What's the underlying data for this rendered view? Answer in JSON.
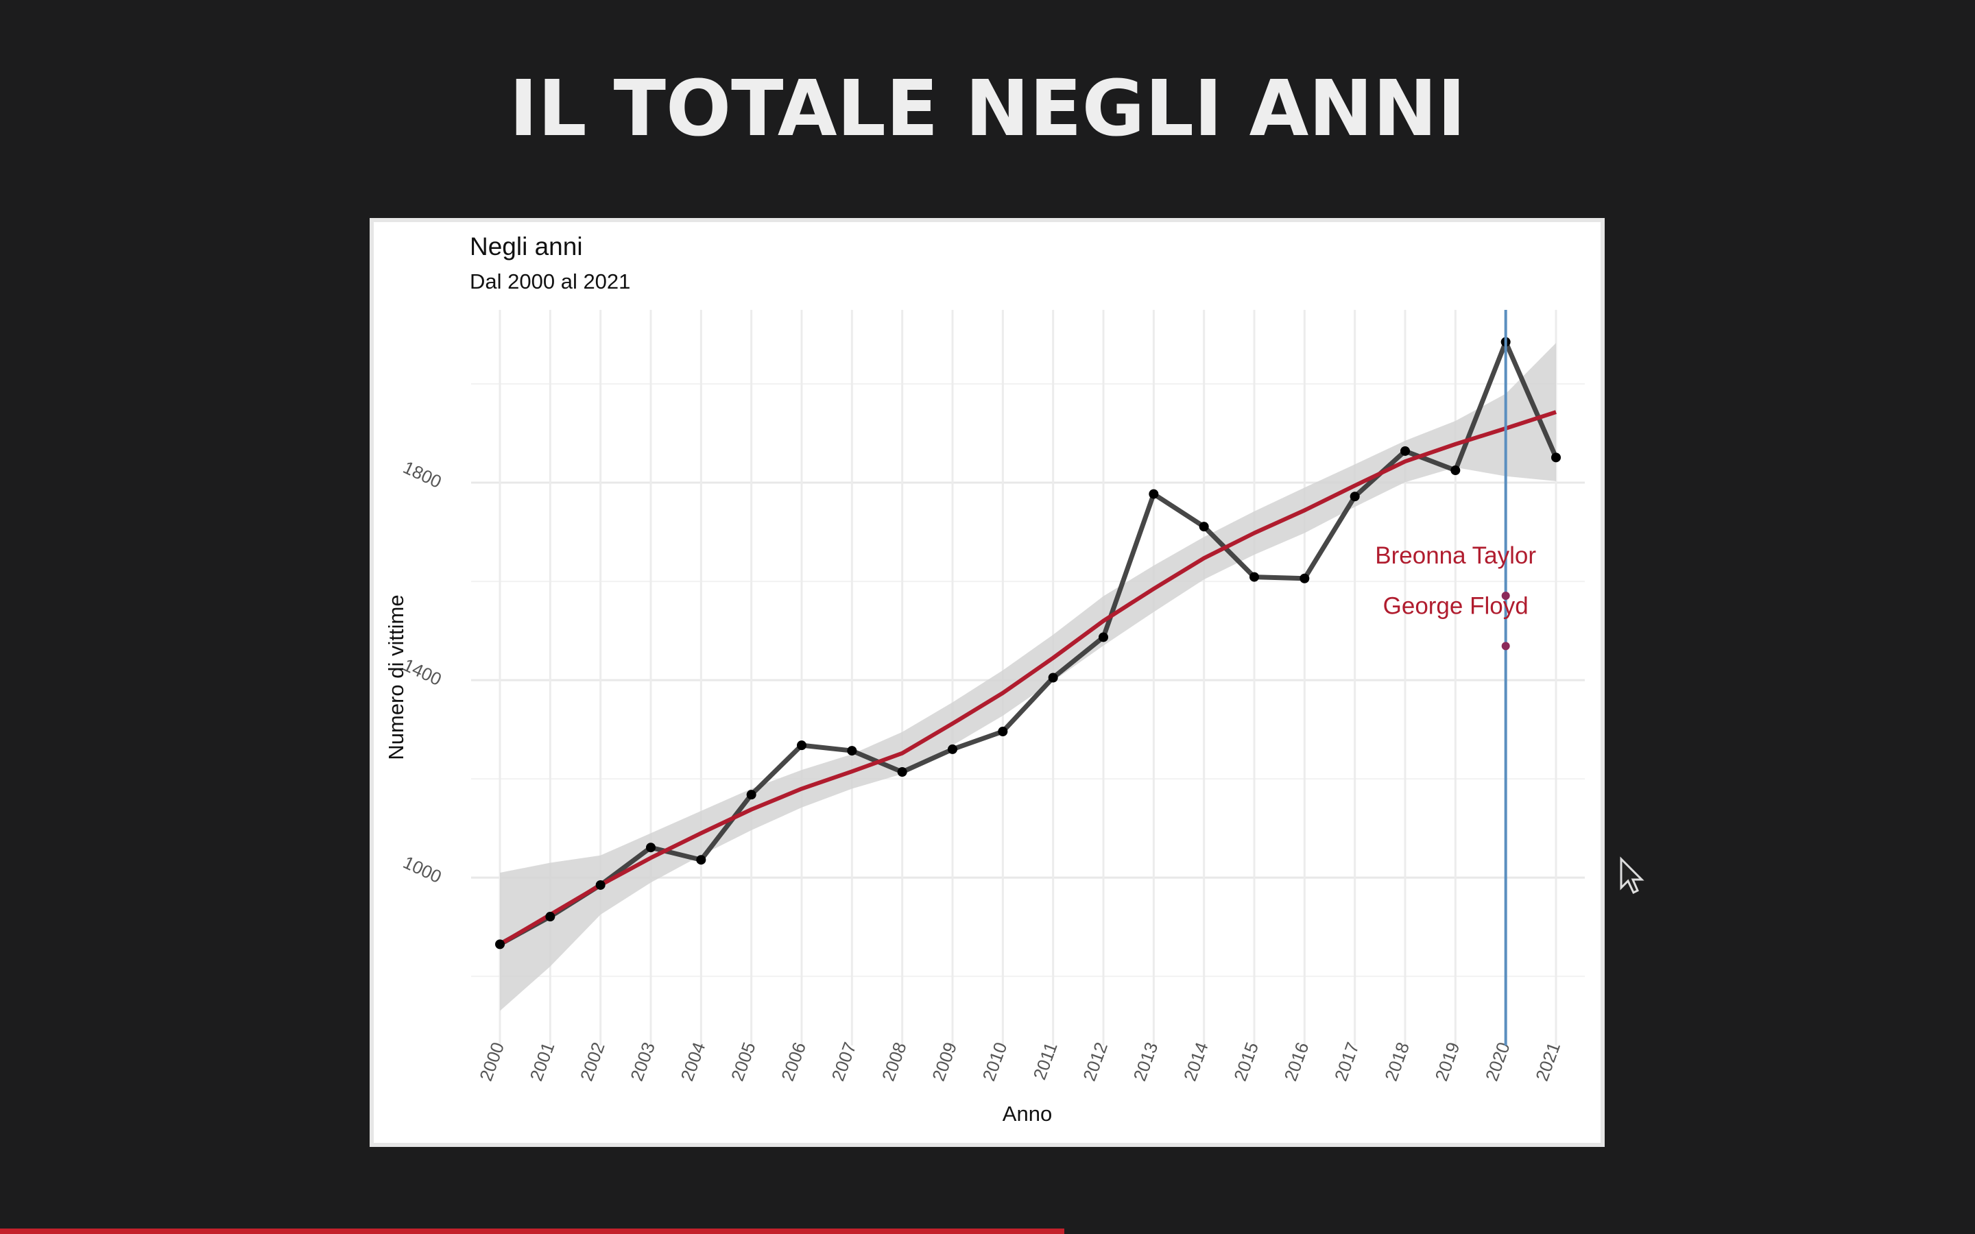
{
  "page_title": "IL TOTALE NEGLI ANNI",
  "chart_data": {
    "type": "line",
    "title": "Negli anni",
    "subtitle": "Dal 2000 al 2021",
    "x_label": "Anno",
    "y_label": "Numero di vittime",
    "x": [
      2000,
      2001,
      2002,
      2003,
      2004,
      2005,
      2006,
      2007,
      2008,
      2009,
      2010,
      2011,
      2012,
      2013,
      2014,
      2015,
      2016,
      2017,
      2018,
      2019,
      2020,
      2021
    ],
    "values": [
      865,
      921,
      985,
      1061,
      1036,
      1168,
      1268,
      1257,
      1214,
      1260,
      1296,
      1405,
      1487,
      1777,
      1711,
      1609,
      1606,
      1772,
      1864,
      1825,
      2085,
      1851
    ],
    "color": "#333333",
    "trend": [
      865,
      925,
      985,
      1040,
      1090,
      1138,
      1180,
      1215,
      1252,
      1312,
      1374,
      1445,
      1520,
      1585,
      1647,
      1698,
      1744,
      1794,
      1843,
      1878,
      1910,
      1943
    ],
    "trend_color": "#b01c2e",
    "trend_upper": [
      1010,
      1030,
      1045,
      1090,
      1135,
      1180,
      1218,
      1250,
      1295,
      1355,
      1420,
      1492,
      1570,
      1632,
      1690,
      1742,
      1790,
      1837,
      1885,
      1925,
      1980,
      2083
    ],
    "trend_lower": [
      730,
      820,
      925,
      990,
      1045,
      1096,
      1142,
      1180,
      1210,
      1268,
      1328,
      1398,
      1470,
      1538,
      1604,
      1654,
      1698,
      1751,
      1801,
      1831,
      1813,
      1803
    ],
    "band_color": "#d3d3d3",
    "xlim": [
      2000,
      2021
    ],
    "ylim": [
      660,
      2150
    ],
    "yticks": [
      1000,
      1400,
      1800
    ],
    "minor_yticks": [
      800,
      1200,
      1600,
      2000
    ],
    "grid": true,
    "vline": {
      "x": 2020,
      "color": "#5b8fbf"
    },
    "annotations": [
      {
        "text": "Breonna Taylor",
        "x": 2020,
        "y": 1571,
        "color": "#b01c2e"
      },
      {
        "text": "George Floyd",
        "x": 2020,
        "y": 1469,
        "color": "#b01c2e"
      }
    ]
  }
}
